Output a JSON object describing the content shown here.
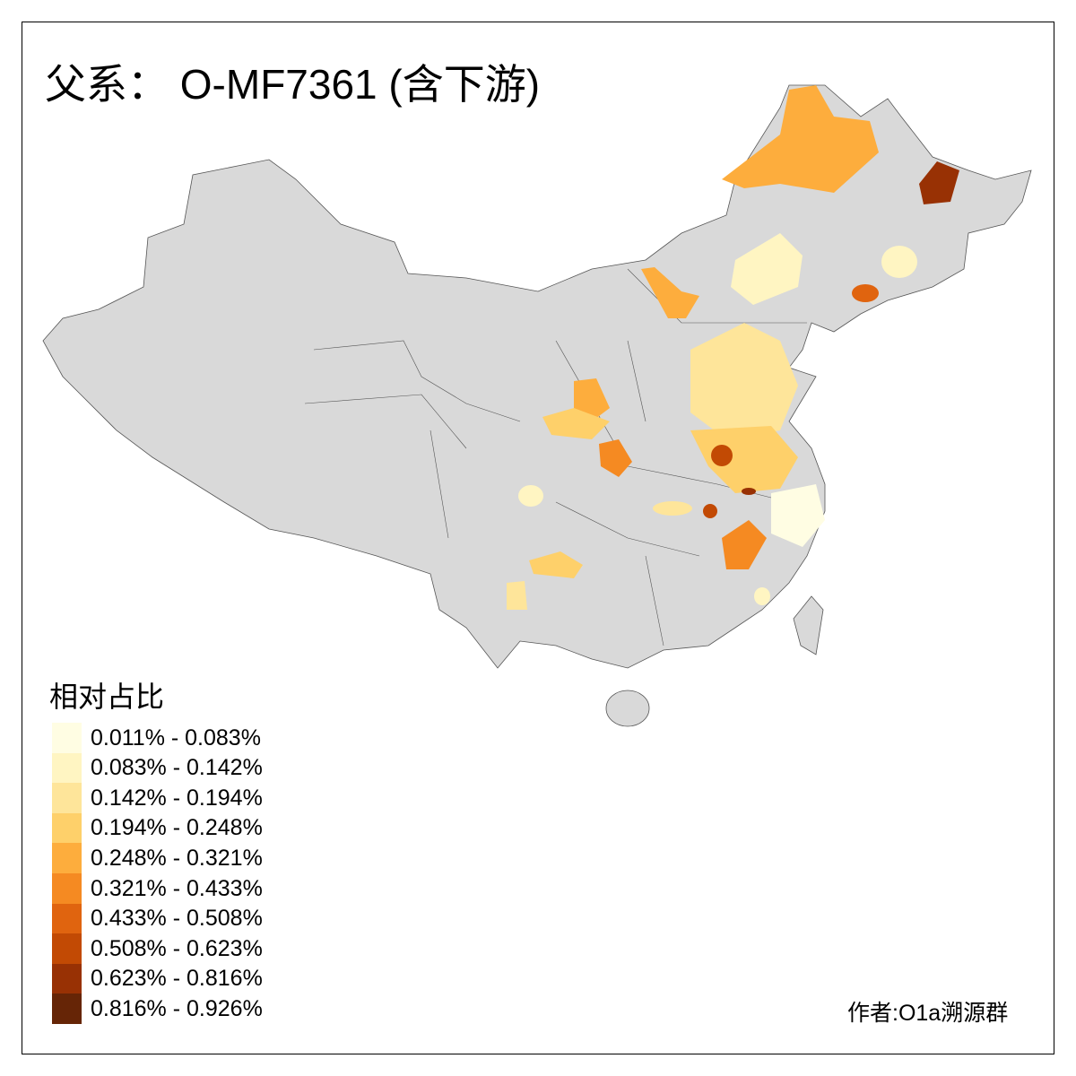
{
  "title": "父系： O-MF7361 (含下游)",
  "legend": {
    "title": "相对占比",
    "items": [
      {
        "label": "0.011% - 0.083%",
        "color": "#FFFDE3"
      },
      {
        "label": "0.083% - 0.142%",
        "color": "#FFF5C2"
      },
      {
        "label": "0.142% - 0.194%",
        "color": "#FEE59A"
      },
      {
        "label": "0.194% - 0.248%",
        "color": "#FED06A"
      },
      {
        "label": "0.248% - 0.321%",
        "color": "#FDAD3D"
      },
      {
        "label": "0.321% - 0.433%",
        "color": "#F58A22"
      },
      {
        "label": "0.433% - 0.508%",
        "color": "#E0640F"
      },
      {
        "label": "0.508% - 0.623%",
        "color": "#C24A04"
      },
      {
        "label": "0.623% - 0.816%",
        "color": "#983104"
      },
      {
        "label": "0.816% - 0.926%",
        "color": "#662506"
      }
    ]
  },
  "author": "作者:O1a溯源群",
  "colors": {
    "land": "#D9D9D9",
    "border": "#555555",
    "no_data": "#D9D9D9"
  }
}
